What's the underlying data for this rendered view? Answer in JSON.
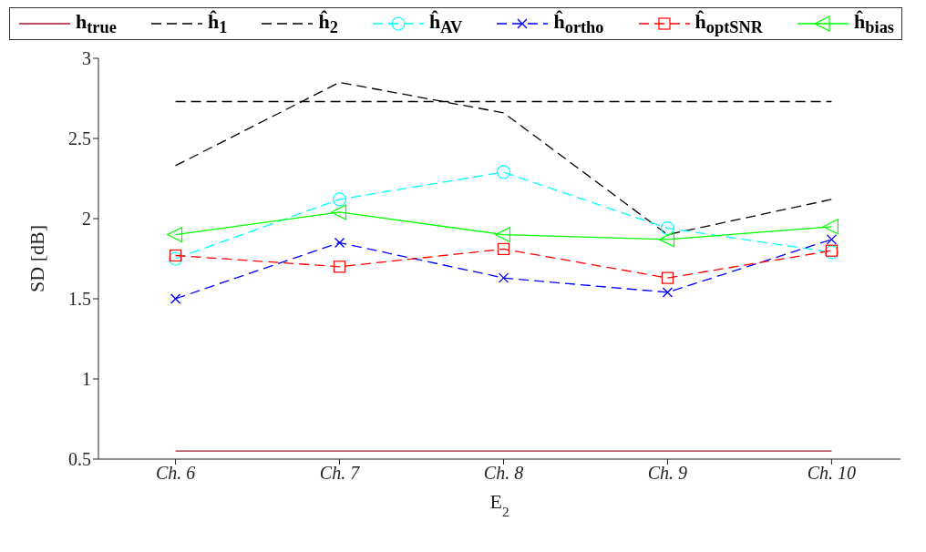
{
  "chart_data": {
    "type": "line",
    "xlabel": "E$_{2}$",
    "ylabel": "SD [dB]",
    "categories": [
      "Ch. 6",
      "Ch. 7",
      "Ch. 8",
      "Ch. 9",
      "Ch. 10"
    ],
    "series": [
      {
        "name": "h$_{true}$",
        "color": "#a2142f",
        "values": [
          0.55,
          0.55,
          0.55,
          0.55,
          0.55
        ],
        "line_style": "solid",
        "marker": "none"
      },
      {
        "name": "ĥ$_{1}$",
        "color": "#000000",
        "values": [
          2.73,
          2.73,
          2.73,
          2.73,
          2.73
        ],
        "line_style": "dashed",
        "marker": "none"
      },
      {
        "name": "ĥ$_{2}$",
        "color": "#000000",
        "values": [
          2.33,
          2.85,
          2.66,
          1.9,
          2.12
        ],
        "line_style": "dashed",
        "marker": "none"
      },
      {
        "name": "ĥ$_{AV}$",
        "color": "#00ffff",
        "values": [
          1.75,
          2.12,
          2.29,
          1.94,
          1.79
        ],
        "line_style": "dashed",
        "marker": "circle"
      },
      {
        "name": "ĥ$_{ortho}$",
        "color": "#0000ff",
        "values": [
          1.5,
          1.85,
          1.63,
          1.54,
          1.87
        ],
        "line_style": "dashed",
        "marker": "cross"
      },
      {
        "name": "ĥ$_{optSNR}$",
        "color": "#ff0000",
        "values": [
          1.77,
          1.7,
          1.81,
          1.63,
          1.8
        ],
        "line_style": "dashed",
        "marker": "square"
      },
      {
        "name": "ĥ$_{bias}$",
        "color": "#00ff00",
        "values": [
          1.9,
          2.04,
          1.9,
          1.87,
          1.95
        ],
        "line_style": "solid",
        "marker": "triangle"
      }
    ],
    "ylim": [
      0.5,
      3
    ],
    "yticks": [
      0.5,
      1,
      1.5,
      2,
      2.5,
      3
    ],
    "grid": false,
    "legend": "top"
  }
}
